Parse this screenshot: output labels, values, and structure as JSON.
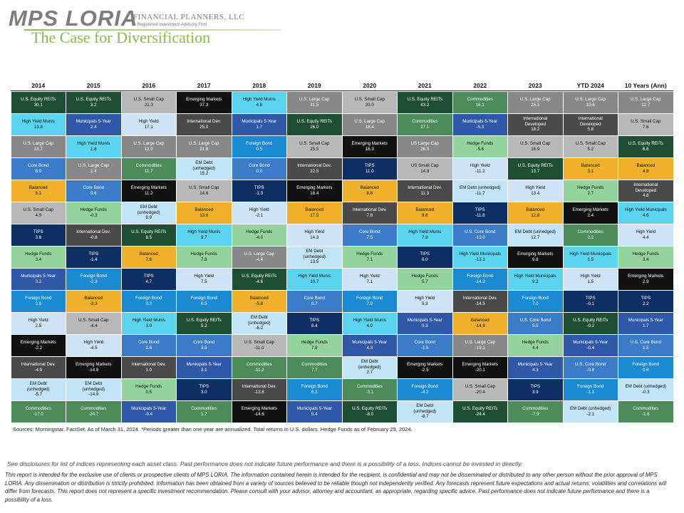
{
  "brand": {
    "logo_name": "MPS LORIA",
    "logo_tagline": "FINANCIAL PLANNERS, LLC",
    "logo_sub": "A Registered Investment Advisory Firm"
  },
  "page": {
    "title": "The Case for Diversification"
  },
  "colors": {
    "U.S. Equity REITs": "#1e4e34",
    "U.S. Small Cap": "#b8b8b8",
    "Emerging Markets": "#111111",
    "High Yield Munis": "#5bd4f0",
    "U.S. Large Cap": "#888888",
    "Commodities": "#4c8b5a",
    "High Yield": "#cfe3f7",
    "Municipals 5-Year": "#2f59a8",
    "International Dev.": "#4a4a4a",
    "Foreign Bond": "#1a8ad2",
    "Core Bond": "#3b7cc9",
    "Balanced": "#f0b02a",
    "Hedge Funds": "#93d49d",
    "EM Debt (unhedged)": "#c2e4f7",
    "TIPS": "#0d2f63"
  },
  "chart_data": {
    "type": "table",
    "title": "The Case for Diversification",
    "columns": [
      "2014",
      "2015",
      "2016",
      "2017",
      "2018",
      "2019",
      "2020",
      "2021",
      "2022",
      "2023",
      "YTD 2024",
      "10 Years (Ann)"
    ],
    "rows": [
      [
        [
          "U.S. Equity REITs",
          "30.1"
        ],
        [
          "U.S. Equity REITs",
          "3.2"
        ],
        [
          "U.S. Small Cap",
          "21.3"
        ],
        [
          "Emerging Markets",
          "37.3"
        ],
        [
          "High Yield Munis",
          "4.8"
        ],
        [
          "U.S. Large Cap",
          "31.5"
        ],
        [
          "U.S. Small Cap",
          "20.0"
        ],
        [
          "U.S. Equity REITs",
          "43.2"
        ],
        [
          "Commodities",
          "16.1"
        ],
        [
          "U.S. Large Cap",
          "26.3"
        ],
        [
          "U.S. Large Cap",
          "10.6"
        ],
        [
          "U.S. Large Cap",
          "12.7"
        ]
      ],
      [
        [
          "High Yield Munis",
          "13.8"
        ],
        [
          "Municipals 5-Year",
          "2.4"
        ],
        [
          "High Yield",
          "17.1"
        ],
        [
          "International Dev.",
          "25.0"
        ],
        [
          "Municipals 5-Year",
          "1.7"
        ],
        [
          "U.S. Equity REITs",
          "26.0"
        ],
        [
          "U.S. Large Cap",
          "18.4"
        ],
        [
          "Commodities",
          "27.1"
        ],
        [
          "Municipals 5-Year",
          "-5.3"
        ],
        [
          "International\nDeveloped",
          "18.2"
        ],
        [
          "International\nDeveloped",
          "5.8"
        ],
        [
          "U.S. Small Cap",
          "7.6"
        ]
      ],
      [
        [
          "U.S. Large Cap",
          "13.7"
        ],
        [
          "High Yield Munis",
          "1.8"
        ],
        [
          "U.S. Large Cap",
          "12.0"
        ],
        [
          "U.S. Large Cap",
          "21.8"
        ],
        [
          "Foreign Bond",
          "0.5"
        ],
        [
          "U.S. Small Cap",
          "25.5"
        ],
        [
          "Emerging Markets",
          "18.3"
        ],
        [
          "US Large Cap",
          "26.5"
        ],
        [
          "Hedge Funds",
          "-5.6"
        ],
        [
          "U.S. Small Cap",
          "16.9"
        ],
        [
          "U.S. Small Cap",
          "5.2"
        ],
        [
          "U.S. Equity REITs",
          "6.6"
        ]
      ],
      [
        [
          "Core Bond",
          "6.0"
        ],
        [
          "U.S. Large Cap",
          "1.4"
        ],
        [
          "Commodities",
          "11.7"
        ],
        [
          "EM Debt\n(unhedged)",
          "15.2"
        ],
        [
          "Core Bond",
          "0.0"
        ],
        [
          "International Dev.",
          "22.5"
        ],
        [
          "TIPS",
          "11.0"
        ],
        [
          "US Small Cap",
          "14.8"
        ],
        [
          "High Yield",
          "-11.2"
        ],
        [
          "U.S. Equity REITs",
          "13.7"
        ],
        [
          "Balanced",
          "3.1"
        ],
        [
          "Balanced",
          "4.8"
        ]
      ],
      [
        [
          "Balanced",
          "5.1"
        ],
        [
          "Core Bond",
          "0.6"
        ],
        [
          "Emerging Markets",
          "11.2"
        ],
        [
          "U.S. Small Cap",
          "14.6"
        ],
        [
          "TIPS",
          "-1.3"
        ],
        [
          "Emerging Markets",
          "18.4"
        ],
        [
          "Balanced",
          "8.8"
        ],
        [
          "International Dev.",
          "11.3"
        ],
        [
          "EM Debt (unhedged)",
          "-11.7"
        ],
        [
          "High Yield",
          "13.4"
        ],
        [
          "Hedge Funds",
          "2.7"
        ],
        [
          "International\nDeveloped",
          "4.8"
        ]
      ],
      [
        [
          "U.S. Small Cap",
          "4.9"
        ],
        [
          "Hedge Funds",
          "-0.3"
        ],
        [
          "EM Debt\n(unhedged)",
          "9.9"
        ],
        [
          "Balanced",
          "13.6"
        ],
        [
          "High Yield",
          "-2.1"
        ],
        [
          "Balanced",
          "17.5"
        ],
        [
          "International Dev.",
          "7.8"
        ],
        [
          "Balanced",
          "9.8"
        ],
        [
          "TIPS",
          "-11.8"
        ],
        [
          "Balanced",
          "12.8"
        ],
        [
          "Emerging Markets",
          "2.4"
        ],
        [
          "High Yield Municipals",
          "4.6"
        ]
      ],
      [
        [
          "TIPS",
          "3.6"
        ],
        [
          "International Dev.",
          "-0.8"
        ],
        [
          "U.S. Equity REITs",
          "8.5"
        ],
        [
          "High Yield Munis",
          "9.7"
        ],
        [
          "Hedge Funds",
          "-4.0"
        ],
        [
          "High Yield",
          "14.3"
        ],
        [
          "Core Bond",
          "7.5"
        ],
        [
          "High Yield Munis",
          "7.8"
        ],
        [
          "U.S. Core Bond",
          "-13.0"
        ],
        [
          "EM Debt (unhedged)",
          "12.7"
        ],
        [
          "Commodities",
          "2.2"
        ],
        [
          "High Yield",
          "4.4"
        ]
      ],
      [
        [
          "Hedge Funds",
          "3.4"
        ],
        [
          "TIPS",
          "-1.4"
        ],
        [
          "Balanced",
          "7.6"
        ],
        [
          "Hedge Funds",
          "7.8"
        ],
        [
          "U.S. Large Cap",
          "-4.4"
        ],
        [
          "EM Debt\n(unhedged)",
          "13.5"
        ],
        [
          "Hedge Funds",
          "7.1"
        ],
        [
          "TIPS",
          "6.0"
        ],
        [
          "High Yield Municipals",
          "-13.1"
        ],
        [
          "Emerging Markets",
          "9.8"
        ],
        [
          "High Yield Municipals",
          "1.5"
        ],
        [
          "Hedge Funds",
          "3.4"
        ]
      ],
      [
        [
          "Municipals 5-Year",
          "3.2"
        ],
        [
          "Foreign Bond",
          "-2.3"
        ],
        [
          "TIPS",
          "4.7"
        ],
        [
          "High Yield",
          "7.5"
        ],
        [
          "U.S. Equity REITs",
          "-4.6"
        ],
        [
          "High Yield Munis",
          "10.7"
        ],
        [
          "High Yield",
          "7.1"
        ],
        [
          "Hedge Funds",
          "5.7"
        ],
        [
          "Foreign Bond",
          "-14.2"
        ],
        [
          "High Yield Municipals",
          "9.2"
        ],
        [
          "High Yield",
          "1.5"
        ],
        [
          "Emerging Markets",
          "2.9"
        ]
      ],
      [
        [
          "Foreign Bond",
          "2.9"
        ],
        [
          "Balanced",
          "-3.3"
        ],
        [
          "Foreign Bond",
          "3.2"
        ],
        [
          "Foreign Bond",
          "6.5"
        ],
        [
          "Balanced",
          "-5.8"
        ],
        [
          "Core Bond",
          "8.7"
        ],
        [
          "Foreign Bond",
          "7.0"
        ],
        [
          "High Yield",
          "5.3"
        ],
        [
          "International Dev.",
          "-14.5"
        ],
        [
          "Foreign Bond",
          "7.0"
        ],
        [
          "TIPS",
          "-0.1"
        ],
        [
          "TIPS",
          "2.2"
        ]
      ],
      [
        [
          "High Yield",
          "2.5"
        ],
        [
          "U.S. Small Cap",
          "-4.4"
        ],
        [
          "High Yield Munis",
          "3.0"
        ],
        [
          "U.S. Equity REITs",
          "5.2"
        ],
        [
          "EM Debt\n(unhedged)",
          "-6.2"
        ],
        [
          "TIPS",
          "8.4"
        ],
        [
          "High Yield Munis",
          "4.9"
        ],
        [
          "Municipals 5-Year",
          "0.3"
        ],
        [
          "Balanced",
          "-14.9"
        ],
        [
          "U.S. Core Bond",
          "5.5"
        ],
        [
          "U.S. Equity REITs",
          "-0.2"
        ],
        [
          "Municipals 5-Year",
          "1.7"
        ]
      ],
      [
        [
          "Emerging Markets",
          "-2.2"
        ],
        [
          "High Yield",
          "-4.5"
        ],
        [
          "Core Bond",
          "2.6"
        ],
        [
          "Core Bond",
          "3.5"
        ],
        [
          "U.S. Small Cap",
          "-11.0"
        ],
        [
          "Hedge Funds",
          "7.8"
        ],
        [
          "Municipals 5-Year",
          "4.3"
        ],
        [
          "Core Bond",
          "-1.5"
        ],
        [
          "U.S. Large Cap",
          "-19.1"
        ],
        [
          "Hedge Funds",
          "4.4"
        ],
        [
          "Municipals 5-Year",
          "-0.4"
        ],
        [
          "U.S. Core Bond",
          "1.5"
        ]
      ],
      [
        [
          "International Dev.",
          "-4.9"
        ],
        [
          "Emerging Markets",
          "-14.9"
        ],
        [
          "International Dev.",
          "1.0"
        ],
        [
          "Municipals 5-Year",
          "3.1"
        ],
        [
          "Commodities",
          "-11.2"
        ],
        [
          "Commodities",
          "7.7"
        ],
        [
          "EM Debt\n(unhedged)",
          "2.7"
        ],
        [
          "Emerging Markets",
          "-2.5"
        ],
        [
          "Emerging Markets",
          "-20.1"
        ],
        [
          "Municipals 5-Year",
          "4.3"
        ],
        [
          "U.S. Core Bond",
          "-0.8"
        ],
        [
          "Foreign Bond",
          "0.6"
        ]
      ],
      [
        [
          "EM Debt\n(unhedged)",
          "-5.7"
        ],
        [
          "EM Debt\n(unhedged)",
          "-14.9"
        ],
        [
          "Hedge Funds",
          "0.5"
        ],
        [
          "TIPS",
          "3.0"
        ],
        [
          "International Dev.",
          "-13.8"
        ],
        [
          "Foreign Bond",
          "6.3"
        ],
        [
          "Commodities",
          "-3.1"
        ],
        [
          "Foreign Bond",
          "-4.2"
        ],
        [
          "U.S. Small Cap",
          "-20.4"
        ],
        [
          "TIPS",
          "3.9"
        ],
        [
          "Foreign Bond",
          "-1.3"
        ],
        [
          "EM Debt (unhedged)",
          "-0.3"
        ]
      ],
      [
        [
          "Commodities",
          "-17.0"
        ],
        [
          "Commodities",
          "-24.7"
        ],
        [
          "Municipals 5-Year",
          "-0.4"
        ],
        [
          "Commodities",
          "1.7"
        ],
        [
          "Emerging Markets",
          "-14.6"
        ],
        [
          "Municipals 5-Year",
          "5.4"
        ],
        [
          "U.S. Equity REITs",
          "-8.0"
        ],
        [
          "EM Debt\n(unhedged)",
          "-8.7"
        ],
        [
          "U.S. Equity REITs",
          "-24.4"
        ],
        [
          "Commodities",
          "-7.9"
        ],
        [
          "EM Debt (unhedged)",
          "-2.1"
        ],
        [
          "Commodities",
          "-1.6"
        ]
      ]
    ]
  },
  "footer": {
    "sources": "Sources: Morningstar, FactSet. As of March 31, 2024. *Periods greater than one year are annualized. Total returns in U.S. dollars. Hedge Funds as of February 29, 2024.",
    "disclosure_short": "See disclosures for list of indices representing each asset class. Past performance does not indicate future performance and there is a possibility of a loss. Indices cannot be invested in directly.",
    "disclosure_long": "This report is intended for the exclusive use of clients or prospective clients of MPS LORIA. The information contained herein is intended for the recipient, is confidential and may not be disseminated or distributed to any other person without the prior approval of MPS LORIA. Any dissemination or distribution is strictly prohibited. Information has been obtained from a variety of sources believed to be reliable though not independently verified. Any forecasts represent future expectations and actual returns; volatilities and correlations will differ from forecasts. This report does not represent a specific investment recommendation. Please consult with your advisor, attorney and accountant, as appropriate, regarding specific advice. Past performance does not indicate future performance and there is a possibility of a loss."
  }
}
